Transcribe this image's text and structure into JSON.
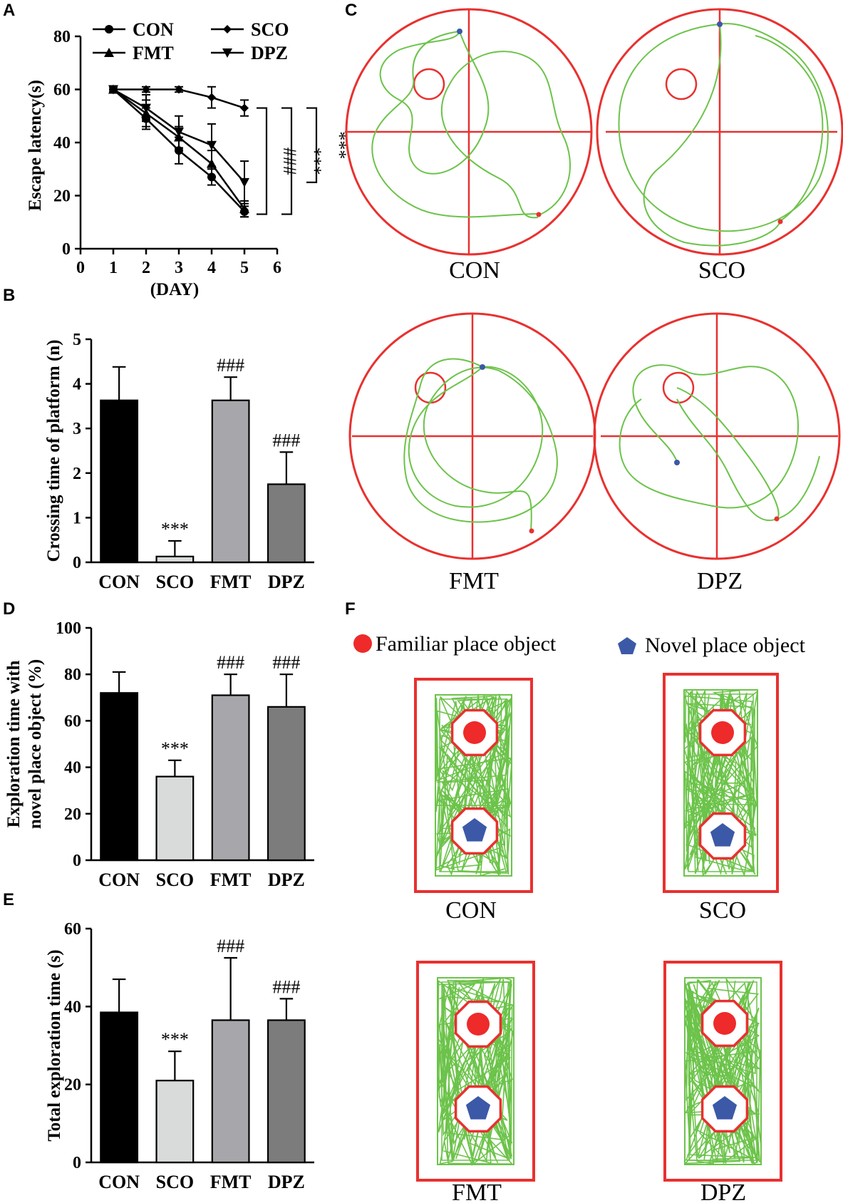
{
  "panels": {
    "A": {
      "letter": "A"
    },
    "B": {
      "letter": "B"
    },
    "C": {
      "letter": "C"
    },
    "D": {
      "letter": "D"
    },
    "E": {
      "letter": "E"
    },
    "F": {
      "letter": "F"
    }
  },
  "chart_data": [
    {
      "id": "A",
      "type": "line",
      "xlabel": "(DAY)",
      "ylabel": "Escape latency(s)",
      "xlim": [
        0,
        6
      ],
      "ylim": [
        0,
        80
      ],
      "xticks": [
        "0",
        "1",
        "2",
        "3",
        "4",
        "5",
        "6"
      ],
      "yticks": [
        "0",
        "20",
        "40",
        "60",
        "80"
      ],
      "x": [
        1,
        2,
        3,
        4,
        5
      ],
      "legend_position": "top",
      "series": [
        {
          "name": "CON",
          "marker": "circle",
          "values": [
            60,
            49,
            37,
            27,
            14
          ],
          "errors": [
            1,
            4,
            5,
            3,
            2
          ]
        },
        {
          "name": "SCO",
          "marker": "diamond",
          "values": [
            60,
            60,
            60,
            57,
            53
          ],
          "errors": [
            1,
            1,
            1,
            4,
            3
          ]
        },
        {
          "name": "FMT",
          "marker": "triangle-up",
          "values": [
            60,
            51,
            42,
            32,
            15
          ],
          "errors": [
            1,
            5,
            4,
            5,
            3
          ]
        },
        {
          "name": "DPZ",
          "marker": "triangle-down",
          "values": [
            60,
            53,
            44,
            39,
            25
          ],
          "errors": [
            1,
            5,
            6,
            8,
            8
          ]
        }
      ],
      "brackets": [
        {
          "label": "###",
          "from": 53,
          "to": 13
        },
        {
          "label": "***",
          "from": 53,
          "to": 13
        },
        {
          "label": "***",
          "from": 53,
          "to": 25
        }
      ]
    },
    {
      "id": "B",
      "type": "bar",
      "ylabel": "Crossing time of platform (n)",
      "ylim": [
        0,
        5
      ],
      "yticks": [
        "0",
        "1",
        "2",
        "3",
        "4",
        "5"
      ],
      "categories": [
        "CON",
        "SCO",
        "FMT",
        "DPZ"
      ],
      "values": [
        3.63,
        0.13,
        3.63,
        1.75
      ],
      "errors": [
        0.75,
        0.35,
        0.52,
        0.72
      ],
      "colors": [
        "#000000",
        "#d9dada",
        "#a7a7ab",
        "#7c7c7c"
      ],
      "annotations": [
        "",
        "***",
        "###",
        "###"
      ]
    },
    {
      "id": "D",
      "type": "bar",
      "ylabel": "Exploration time with novel place object (%)",
      "ylabel_lines": [
        "Exploration time with",
        "novel place object (%)"
      ],
      "ylim": [
        0,
        100
      ],
      "yticks": [
        "0",
        "20",
        "40",
        "60",
        "80",
        "100"
      ],
      "categories": [
        "CON",
        "SCO",
        "FMT",
        "DPZ"
      ],
      "values": [
        72,
        36,
        71,
        66
      ],
      "errors": [
        9,
        7,
        9,
        14
      ],
      "colors": [
        "#000000",
        "#d9dada",
        "#a7a7ab",
        "#7c7c7c"
      ],
      "annotations": [
        "",
        "***",
        "###",
        "###"
      ]
    },
    {
      "id": "E",
      "type": "bar",
      "ylabel": "Total exploration time (s)",
      "ylim": [
        0,
        60
      ],
      "yticks": [
        "0",
        "20",
        "40",
        "60"
      ],
      "categories": [
        "CON",
        "SCO",
        "FMT",
        "DPZ"
      ],
      "values": [
        38.5,
        21,
        36.5,
        36.5
      ],
      "errors": [
        8.5,
        7.5,
        16,
        5.5
      ],
      "colors": [
        "#000000",
        "#d9dada",
        "#a7a7ab",
        "#7c7c7c"
      ],
      "annotations": [
        "",
        "***",
        "###",
        "###"
      ]
    }
  ],
  "trajectories_C": {
    "labels": [
      "CON",
      "SCO",
      "FMT",
      "DPZ"
    ],
    "colors": {
      "pool": "#e8312f",
      "path": "#6cc34a",
      "marker": "#3c59a8"
    }
  },
  "trajectories_F": {
    "legend": {
      "familiar": "Familiar place object",
      "novel": "Novel place object"
    },
    "labels": [
      "CON",
      "SCO",
      "FMT",
      "DPZ"
    ],
    "colors": {
      "box": "#e8312f",
      "path": "#6cc34a",
      "familiar": "#ee2a2a",
      "novel": "#3c59a8"
    }
  }
}
